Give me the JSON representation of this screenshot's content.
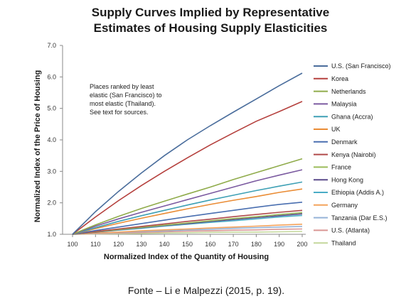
{
  "chart_data": {
    "type": "line",
    "title": [
      "Supply Curves Implied by Representative",
      "Estimates of Housing Supply Elasticities"
    ],
    "xlabel": "Normalized Index of the Quantity of Housing",
    "ylabel": "Normalized Index of the Price of Housing",
    "xlim": [
      100,
      200
    ],
    "ylim": [
      1.0,
      7.0
    ],
    "x_ticks": [
      100,
      110,
      120,
      130,
      140,
      150,
      160,
      170,
      180,
      190,
      200
    ],
    "y_ticks": [
      "1.0",
      "2.0",
      "3.0",
      "4.0",
      "5.0",
      "6.0",
      "7.0"
    ],
    "grid": false,
    "legend_position": "right",
    "annotation": [
      "Places ranked by least",
      "elastic (San Francisco) to",
      "most elastic (Thailand).",
      "See  text for sources."
    ],
    "x": [
      100,
      110,
      120,
      130,
      140,
      150,
      160,
      170,
      180,
      190,
      200
    ],
    "series": [
      {
        "name": "U.S. (San Francisco)",
        "color": "#4a6d9c",
        "values": [
          1.0,
          1.72,
          2.36,
          2.95,
          3.5,
          4.0,
          4.45,
          4.88,
          5.3,
          5.72,
          6.12
        ]
      },
      {
        "name": "Korea",
        "color": "#b5403d",
        "values": [
          1.0,
          1.55,
          2.07,
          2.55,
          3.0,
          3.43,
          3.84,
          4.22,
          4.59,
          4.9,
          5.22
        ]
      },
      {
        "name": "Netherlands",
        "color": "#8fab4a",
        "values": [
          1.0,
          1.3,
          1.57,
          1.82,
          2.05,
          2.28,
          2.5,
          2.74,
          2.96,
          3.18,
          3.4
        ]
      },
      {
        "name": "Malaysia",
        "color": "#7b5aa0",
        "values": [
          1.0,
          1.26,
          1.49,
          1.7,
          1.9,
          2.1,
          2.3,
          2.5,
          2.7,
          2.88,
          3.05
        ]
      },
      {
        "name": "Ghana (Accra)",
        "color": "#3ea0b5",
        "values": [
          1.0,
          1.21,
          1.41,
          1.59,
          1.76,
          1.93,
          2.09,
          2.24,
          2.39,
          2.53,
          2.66
        ]
      },
      {
        "name": "UK",
        "color": "#ea8c35",
        "values": [
          1.0,
          1.18,
          1.35,
          1.51,
          1.66,
          1.81,
          1.95,
          2.08,
          2.2,
          2.33,
          2.44
        ]
      },
      {
        "name": "Denmark",
        "color": "#4a6fb0",
        "values": [
          1.0,
          1.12,
          1.23,
          1.34,
          1.45,
          1.56,
          1.66,
          1.76,
          1.86,
          1.95,
          2.02
        ]
      },
      {
        "name": "Kenya (Nairobi)",
        "color": "#b04a4a",
        "values": [
          1.0,
          1.09,
          1.17,
          1.25,
          1.33,
          1.41,
          1.48,
          1.56,
          1.63,
          1.7,
          1.76
        ]
      },
      {
        "name": "France",
        "color": "#9bbb59",
        "values": [
          1.0,
          1.08,
          1.15,
          1.22,
          1.29,
          1.36,
          1.43,
          1.5,
          1.56,
          1.63,
          1.69
        ]
      },
      {
        "name": "Hong Kong",
        "color": "#5a4a8a",
        "values": [
          1.0,
          1.07,
          1.14,
          1.21,
          1.28,
          1.34,
          1.41,
          1.47,
          1.53,
          1.59,
          1.65
        ]
      },
      {
        "name": "Ethiopia (Addis A.)",
        "color": "#4aacc6",
        "values": [
          1.0,
          1.07,
          1.13,
          1.19,
          1.26,
          1.32,
          1.38,
          1.43,
          1.49,
          1.55,
          1.6
        ]
      },
      {
        "name": "Germany",
        "color": "#f4a35c",
        "values": [
          1.0,
          1.04,
          1.07,
          1.11,
          1.14,
          1.17,
          1.2,
          1.23,
          1.26,
          1.29,
          1.32
        ]
      },
      {
        "name": "Tanzania (Dar E.S.)",
        "color": "#95b3d7",
        "values": [
          1.0,
          1.03,
          1.06,
          1.09,
          1.11,
          1.14,
          1.16,
          1.19,
          1.21,
          1.23,
          1.25
        ]
      },
      {
        "name": "U.S. (Atlanta)",
        "color": "#d99694",
        "values": [
          1.0,
          1.02,
          1.04,
          1.06,
          1.08,
          1.1,
          1.11,
          1.13,
          1.14,
          1.16,
          1.17
        ]
      },
      {
        "name": "Thailand",
        "color": "#c4d79b",
        "values": [
          1.0,
          1.01,
          1.02,
          1.03,
          1.04,
          1.05,
          1.06,
          1.07,
          1.07,
          1.08,
          1.09
        ]
      }
    ]
  },
  "source_caption": "Fonte – Li e Malpezzi (2015, p. 19)."
}
